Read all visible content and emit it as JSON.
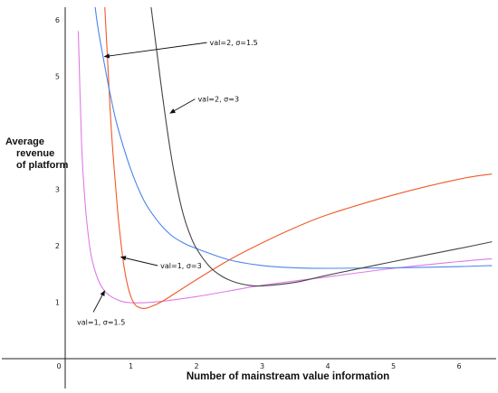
{
  "chart_data": {
    "type": "line",
    "title": "",
    "xlabel": "Number of mainstream value information",
    "ylabel_lines": [
      "Average",
      "revenue",
      "of platform"
    ],
    "xlim": [
      0,
      6.5
    ],
    "ylim": [
      0,
      6.2
    ],
    "x_ticks": [
      0,
      1,
      2,
      3,
      4,
      5,
      6
    ],
    "y_ticks": [
      1,
      2,
      3,
      5,
      6
    ],
    "grid": false,
    "legend": "none",
    "series": [
      {
        "color": "#e07ae6",
        "points": [
          [
            0.2,
            5.8
          ],
          [
            0.25,
            3.8
          ],
          [
            0.3,
            2.8
          ],
          [
            0.35,
            2.2
          ],
          [
            0.4,
            1.8
          ],
          [
            0.5,
            1.4
          ],
          [
            0.6,
            1.2
          ],
          [
            0.7,
            1.1
          ],
          [
            0.85,
            1.02
          ],
          [
            1.0,
            0.99
          ],
          [
            1.2,
            0.99
          ],
          [
            1.5,
            1.02
          ],
          [
            2.0,
            1.1
          ],
          [
            2.5,
            1.2
          ],
          [
            3.0,
            1.3
          ],
          [
            4.0,
            1.45
          ],
          [
            5.0,
            1.6
          ],
          [
            6.0,
            1.72
          ],
          [
            6.5,
            1.77
          ]
        ]
      },
      {
        "color": "#f05a2a",
        "points": [
          [
            0.6,
            6.3
          ],
          [
            0.65,
            5.2
          ],
          [
            0.7,
            4.1
          ],
          [
            0.75,
            3.3
          ],
          [
            0.8,
            2.6
          ],
          [
            0.85,
            2.05
          ],
          [
            0.9,
            1.6
          ],
          [
            0.95,
            1.3
          ],
          [
            1.0,
            1.1
          ],
          [
            1.05,
            0.98
          ],
          [
            1.1,
            0.92
          ],
          [
            1.2,
            0.89
          ],
          [
            1.3,
            0.92
          ],
          [
            1.5,
            1.03
          ],
          [
            2.0,
            1.4
          ],
          [
            2.5,
            1.75
          ],
          [
            3.0,
            2.05
          ],
          [
            3.5,
            2.32
          ],
          [
            4.0,
            2.55
          ],
          [
            5.0,
            2.9
          ],
          [
            6.0,
            3.18
          ],
          [
            6.5,
            3.27
          ]
        ]
      },
      {
        "color": "#4a86e8",
        "points": [
          [
            0.45,
            6.3
          ],
          [
            0.5,
            5.85
          ],
          [
            0.6,
            5.2
          ],
          [
            0.7,
            4.6
          ],
          [
            0.8,
            4.1
          ],
          [
            1.0,
            3.35
          ],
          [
            1.2,
            2.8
          ],
          [
            1.4,
            2.45
          ],
          [
            1.6,
            2.2
          ],
          [
            1.8,
            2.05
          ],
          [
            2.0,
            1.95
          ],
          [
            2.5,
            1.75
          ],
          [
            3.0,
            1.65
          ],
          [
            3.5,
            1.61
          ],
          [
            4.0,
            1.6
          ],
          [
            5.0,
            1.61
          ],
          [
            6.0,
            1.63
          ],
          [
            6.5,
            1.65
          ]
        ]
      },
      {
        "color": "#444444",
        "points": [
          [
            1.3,
            6.3
          ],
          [
            1.4,
            5.4
          ],
          [
            1.5,
            4.5
          ],
          [
            1.6,
            3.7
          ],
          [
            1.7,
            3.05
          ],
          [
            1.8,
            2.55
          ],
          [
            1.9,
            2.2
          ],
          [
            2.0,
            1.95
          ],
          [
            2.2,
            1.63
          ],
          [
            2.4,
            1.45
          ],
          [
            2.6,
            1.35
          ],
          [
            2.8,
            1.3
          ],
          [
            3.0,
            1.29
          ],
          [
            3.5,
            1.35
          ],
          [
            4.0,
            1.48
          ],
          [
            5.0,
            1.72
          ],
          [
            6.0,
            1.95
          ],
          [
            6.5,
            2.07
          ]
        ]
      }
    ],
    "annotations": [
      {
        "text": "val=2, σ=1.5",
        "label": [
          2.2,
          5.55
        ],
        "target": [
          0.6,
          5.35
        ]
      },
      {
        "text": "val=2, σ=3",
        "label": [
          2.02,
          4.55
        ],
        "target": [
          1.6,
          4.35
        ]
      },
      {
        "text": "val=1, σ=3",
        "label": [
          1.45,
          1.6
        ],
        "target": [
          0.85,
          1.8
        ]
      },
      {
        "text": "val=1, σ=1.5",
        "label": [
          0.18,
          0.6
        ],
        "target": [
          0.6,
          1.2
        ]
      }
    ]
  }
}
